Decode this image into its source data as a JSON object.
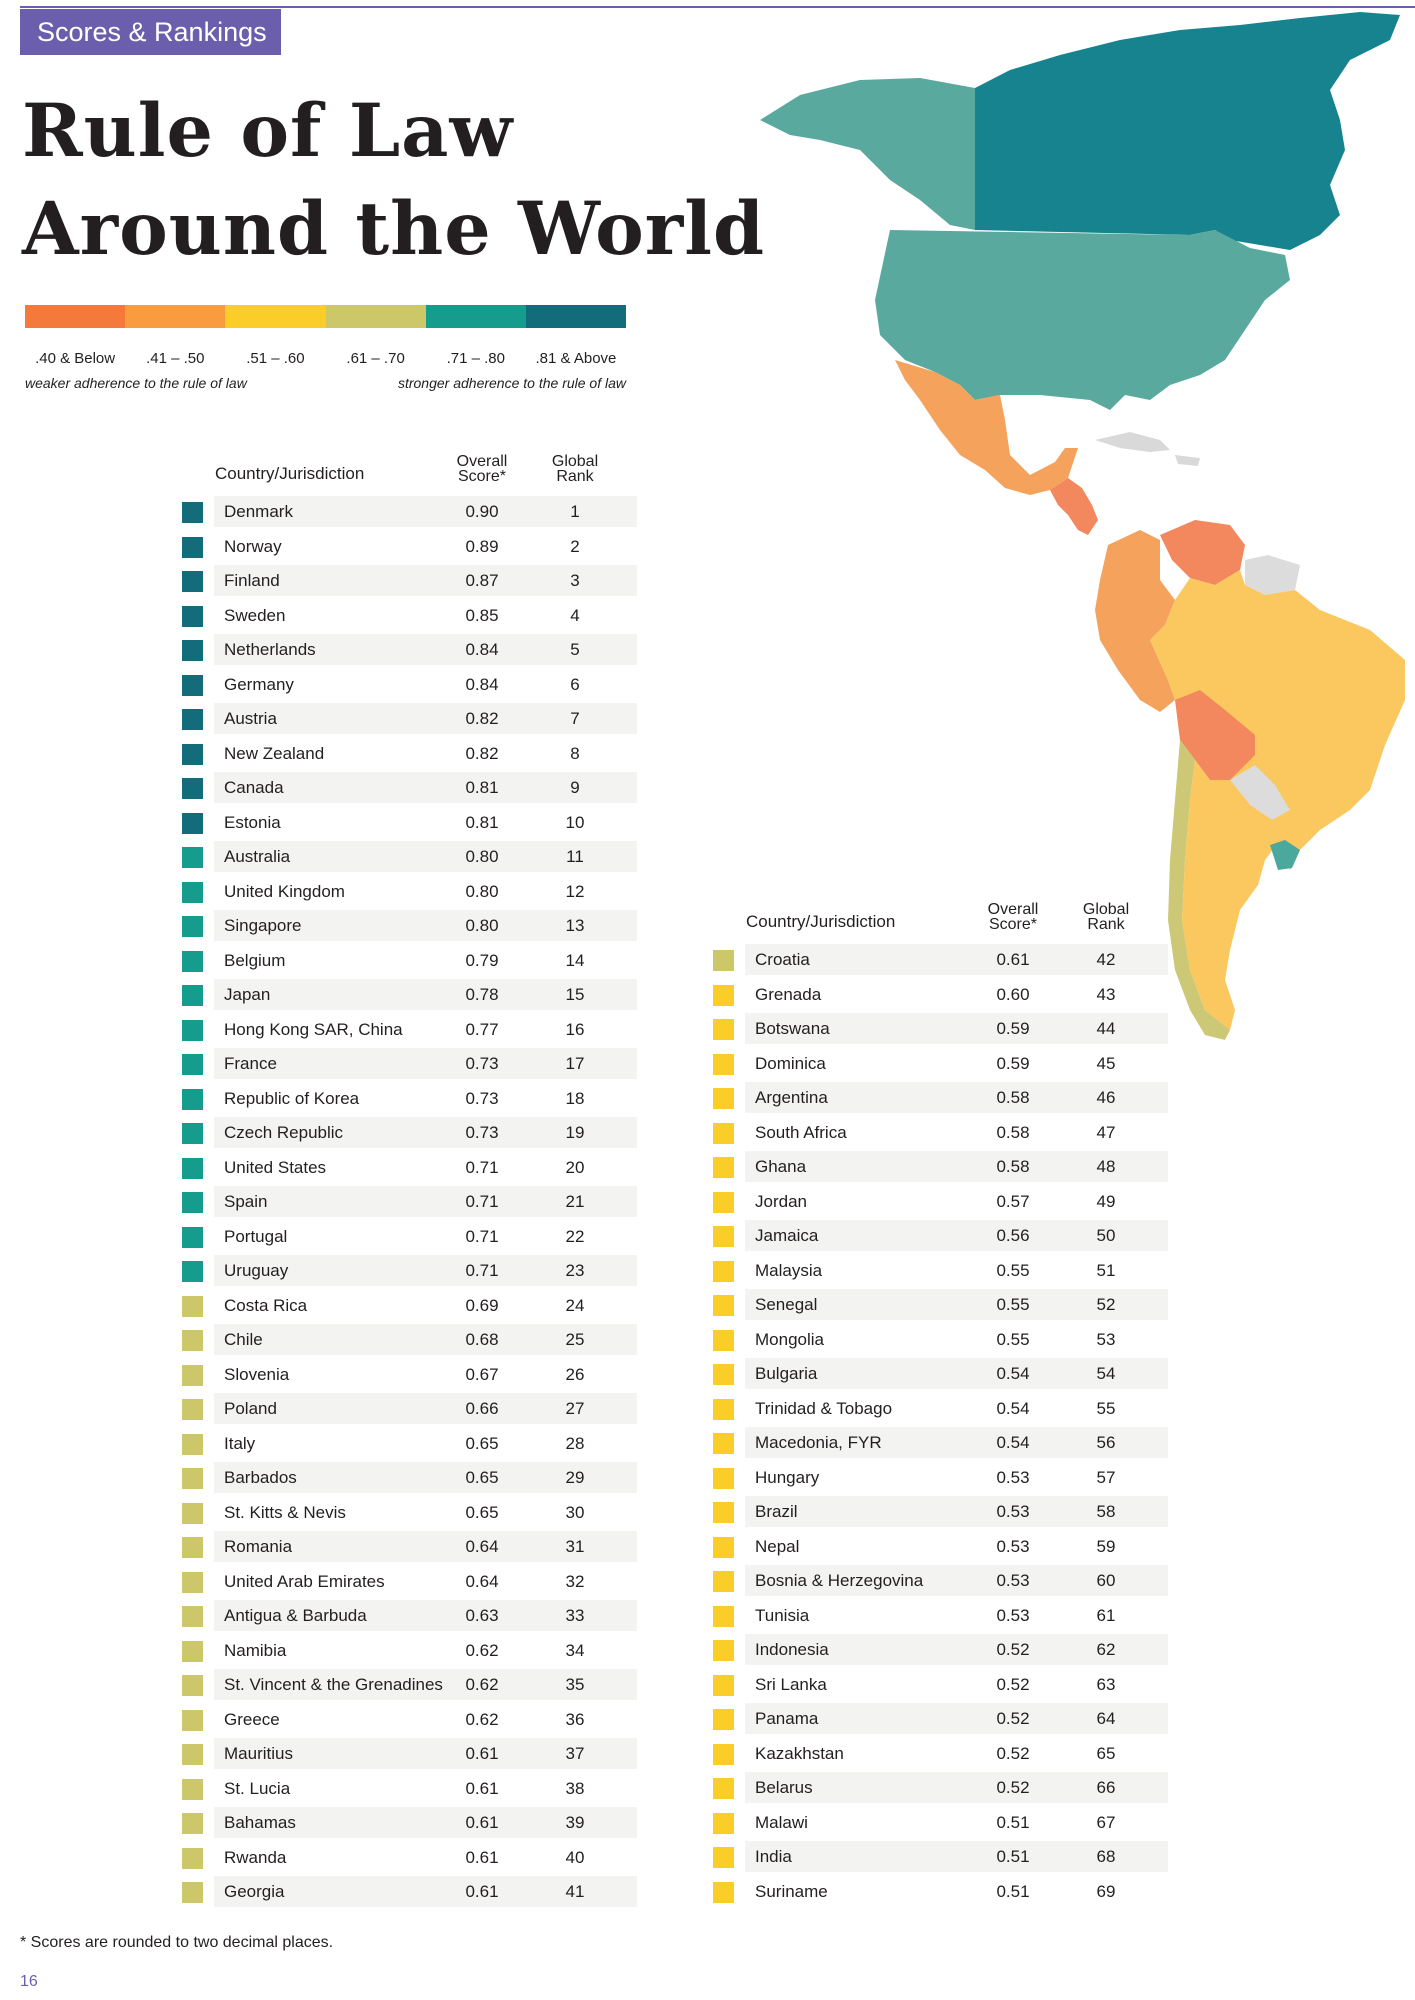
{
  "header": {
    "section_tag": "Scores & Rankings",
    "title_line1": "Rule of Law",
    "title_line2": "Around the World"
  },
  "legend": {
    "colors": [
      "#f47a3c",
      "#f99c3f",
      "#fbcd28",
      "#ccc86a",
      "#169c8c",
      "#136c79"
    ],
    "labels": [
      ".40 & Below",
      ".41 – .50",
      ".51 – .60",
      ".61 – .70",
      ".71 – .80",
      ".81 & Above"
    ],
    "note_left": "weaker adherence to the rule of law",
    "note_right": "stronger adherence to the rule of law"
  },
  "table_headers": {
    "country": "Country/Jurisdiction",
    "score_line1": "Overall",
    "score_line2": "Score*",
    "rank_line1": "Global",
    "rank_line2": "Rank"
  },
  "map_colors": {
    "canada": "#17838f",
    "alaska": "#5aa99f",
    "usa": "#5aa99f",
    "mexico": "#f4a25c",
    "central": "#f3875d",
    "carib": "#d9d9d9",
    "south_orange": "#f4a25c",
    "venezuela": "#f3875d",
    "bolivia": "#f3875d",
    "brazil": "#fac85e",
    "argentina": "#fac85e",
    "chile": "#ccc876",
    "uruguay": "#4aa89c",
    "grey": "#dcdcdc"
  },
  "table_left": [
    {
      "name": "Denmark",
      "score": "0.90",
      "rank": "1",
      "color": "#136c79"
    },
    {
      "name": "Norway",
      "score": "0.89",
      "rank": "2",
      "color": "#136c79"
    },
    {
      "name": "Finland",
      "score": "0.87",
      "rank": "3",
      "color": "#136c79"
    },
    {
      "name": "Sweden",
      "score": "0.85",
      "rank": "4",
      "color": "#136c79"
    },
    {
      "name": "Netherlands",
      "score": "0.84",
      "rank": "5",
      "color": "#136c79"
    },
    {
      "name": "Germany",
      "score": "0.84",
      "rank": "6",
      "color": "#136c79"
    },
    {
      "name": "Austria",
      "score": "0.82",
      "rank": "7",
      "color": "#136c79"
    },
    {
      "name": "New Zealand",
      "score": "0.82",
      "rank": "8",
      "color": "#136c79"
    },
    {
      "name": "Canada",
      "score": "0.81",
      "rank": "9",
      "color": "#136c79"
    },
    {
      "name": "Estonia",
      "score": "0.81",
      "rank": "10",
      "color": "#136c79"
    },
    {
      "name": "Australia",
      "score": "0.80",
      "rank": "11",
      "color": "#169c8c"
    },
    {
      "name": "United Kingdom",
      "score": "0.80",
      "rank": "12",
      "color": "#169c8c"
    },
    {
      "name": "Singapore",
      "score": "0.80",
      "rank": "13",
      "color": "#169c8c"
    },
    {
      "name": "Belgium",
      "score": "0.79",
      "rank": "14",
      "color": "#169c8c"
    },
    {
      "name": "Japan",
      "score": "0.78",
      "rank": "15",
      "color": "#169c8c"
    },
    {
      "name": "Hong Kong SAR, China",
      "score": "0.77",
      "rank": "16",
      "color": "#169c8c"
    },
    {
      "name": "France",
      "score": "0.73",
      "rank": "17",
      "color": "#169c8c"
    },
    {
      "name": "Republic of Korea",
      "score": "0.73",
      "rank": "18",
      "color": "#169c8c"
    },
    {
      "name": "Czech Republic",
      "score": "0.73",
      "rank": "19",
      "color": "#169c8c"
    },
    {
      "name": "United States",
      "score": "0.71",
      "rank": "20",
      "color": "#169c8c"
    },
    {
      "name": "Spain",
      "score": "0.71",
      "rank": "21",
      "color": "#169c8c"
    },
    {
      "name": "Portugal",
      "score": "0.71",
      "rank": "22",
      "color": "#169c8c"
    },
    {
      "name": "Uruguay",
      "score": "0.71",
      "rank": "23",
      "color": "#169c8c"
    },
    {
      "name": "Costa Rica",
      "score": "0.69",
      "rank": "24",
      "color": "#ccc86a"
    },
    {
      "name": "Chile",
      "score": "0.68",
      "rank": "25",
      "color": "#ccc86a"
    },
    {
      "name": "Slovenia",
      "score": "0.67",
      "rank": "26",
      "color": "#ccc86a"
    },
    {
      "name": "Poland",
      "score": "0.66",
      "rank": "27",
      "color": "#ccc86a"
    },
    {
      "name": "Italy",
      "score": "0.65",
      "rank": "28",
      "color": "#ccc86a"
    },
    {
      "name": "Barbados",
      "score": "0.65",
      "rank": "29",
      "color": "#ccc86a"
    },
    {
      "name": "St. Kitts & Nevis",
      "score": "0.65",
      "rank": "30",
      "color": "#ccc86a"
    },
    {
      "name": "Romania",
      "score": "0.64",
      "rank": "31",
      "color": "#ccc86a"
    },
    {
      "name": "United Arab Emirates",
      "score": "0.64",
      "rank": "32",
      "color": "#ccc86a"
    },
    {
      "name": "Antigua & Barbuda",
      "score": "0.63",
      "rank": "33",
      "color": "#ccc86a"
    },
    {
      "name": "Namibia",
      "score": "0.62",
      "rank": "34",
      "color": "#ccc86a"
    },
    {
      "name": "St. Vincent & the Grenadines",
      "score": "0.62",
      "rank": "35",
      "color": "#ccc86a"
    },
    {
      "name": "Greece",
      "score": "0.62",
      "rank": "36",
      "color": "#ccc86a"
    },
    {
      "name": "Mauritius",
      "score": "0.61",
      "rank": "37",
      "color": "#ccc86a"
    },
    {
      "name": "St. Lucia",
      "score": "0.61",
      "rank": "38",
      "color": "#ccc86a"
    },
    {
      "name": "Bahamas",
      "score": "0.61",
      "rank": "39",
      "color": "#ccc86a"
    },
    {
      "name": "Rwanda",
      "score": "0.61",
      "rank": "40",
      "color": "#ccc86a"
    },
    {
      "name": "Georgia",
      "score": "0.61",
      "rank": "41",
      "color": "#ccc86a"
    }
  ],
  "table_right": [
    {
      "name": "Croatia",
      "score": "0.61",
      "rank": "42",
      "color": "#ccc86a"
    },
    {
      "name": "Grenada",
      "score": "0.60",
      "rank": "43",
      "color": "#fbcd28"
    },
    {
      "name": "Botswana",
      "score": "0.59",
      "rank": "44",
      "color": "#fbcd28"
    },
    {
      "name": "Dominica",
      "score": "0.59",
      "rank": "45",
      "color": "#fbcd28"
    },
    {
      "name": "Argentina",
      "score": "0.58",
      "rank": "46",
      "color": "#fbcd28"
    },
    {
      "name": "South Africa",
      "score": "0.58",
      "rank": "47",
      "color": "#fbcd28"
    },
    {
      "name": "Ghana",
      "score": "0.58",
      "rank": "48",
      "color": "#fbcd28"
    },
    {
      "name": "Jordan",
      "score": "0.57",
      "rank": "49",
      "color": "#fbcd28"
    },
    {
      "name": "Jamaica",
      "score": "0.56",
      "rank": "50",
      "color": "#fbcd28"
    },
    {
      "name": "Malaysia",
      "score": "0.55",
      "rank": "51",
      "color": "#fbcd28"
    },
    {
      "name": "Senegal",
      "score": "0.55",
      "rank": "52",
      "color": "#fbcd28"
    },
    {
      "name": "Mongolia",
      "score": "0.55",
      "rank": "53",
      "color": "#fbcd28"
    },
    {
      "name": "Bulgaria",
      "score": "0.54",
      "rank": "54",
      "color": "#fbcd28"
    },
    {
      "name": "Trinidad & Tobago",
      "score": "0.54",
      "rank": "55",
      "color": "#fbcd28"
    },
    {
      "name": "Macedonia, FYR",
      "score": "0.54",
      "rank": "56",
      "color": "#fbcd28"
    },
    {
      "name": "Hungary",
      "score": "0.53",
      "rank": "57",
      "color": "#fbcd28"
    },
    {
      "name": "Brazil",
      "score": "0.53",
      "rank": "58",
      "color": "#fbcd28"
    },
    {
      "name": "Nepal",
      "score": "0.53",
      "rank": "59",
      "color": "#fbcd28"
    },
    {
      "name": "Bosnia & Herzegovina",
      "score": "0.53",
      "rank": "60",
      "color": "#fbcd28"
    },
    {
      "name": "Tunisia",
      "score": "0.53",
      "rank": "61",
      "color": "#fbcd28"
    },
    {
      "name": "Indonesia",
      "score": "0.52",
      "rank": "62",
      "color": "#fbcd28"
    },
    {
      "name": "Sri Lanka",
      "score": "0.52",
      "rank": "63",
      "color": "#fbcd28"
    },
    {
      "name": "Panama",
      "score": "0.52",
      "rank": "64",
      "color": "#fbcd28"
    },
    {
      "name": "Kazakhstan",
      "score": "0.52",
      "rank": "65",
      "color": "#fbcd28"
    },
    {
      "name": "Belarus",
      "score": "0.52",
      "rank": "66",
      "color": "#fbcd28"
    },
    {
      "name": "Malawi",
      "score": "0.51",
      "rank": "67",
      "color": "#fbcd28"
    },
    {
      "name": "India",
      "score": "0.51",
      "rank": "68",
      "color": "#fbcd28"
    },
    {
      "name": "Suriname",
      "score": "0.51",
      "rank": "69",
      "color": "#fbcd28"
    }
  ],
  "footnote": "* Scores are rounded to two decimal places.",
  "page_number": "16"
}
